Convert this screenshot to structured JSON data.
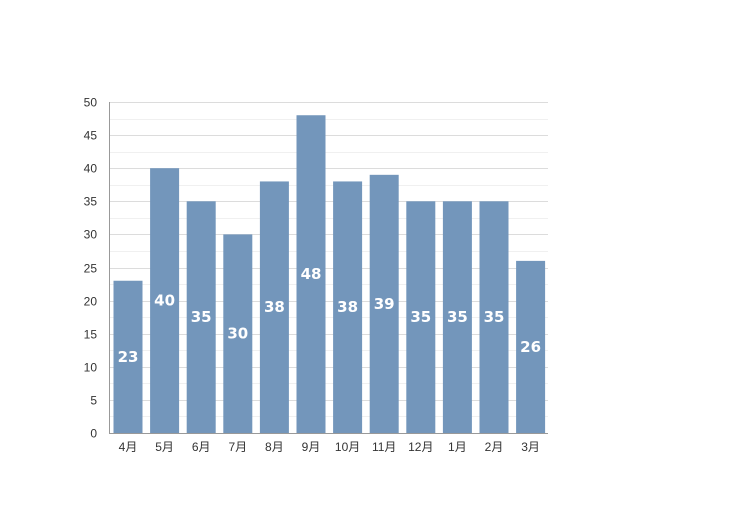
{
  "chart_data": {
    "type": "bar",
    "categories": [
      "4月",
      "5月",
      "6月",
      "7月",
      "8月",
      "9月",
      "10月",
      "11月",
      "12月",
      "1月",
      "2月",
      "3月"
    ],
    "values": [
      23,
      40,
      35,
      30,
      38,
      48,
      38,
      39,
      35,
      35,
      35,
      26
    ],
    "title": "",
    "xlabel": "",
    "ylabel": "",
    "ylim": [
      0,
      50
    ],
    "yticks": [
      0,
      5,
      10,
      15,
      20,
      25,
      30,
      35,
      40,
      45,
      50
    ],
    "grid": true,
    "legend": "none",
    "data_labels": true,
    "colors": {
      "bar": "#7396BB",
      "grid": "#DCDCDC",
      "grid_minor": "#F0F0F0",
      "axis": "#999999",
      "label": "#FFFFFF"
    }
  }
}
